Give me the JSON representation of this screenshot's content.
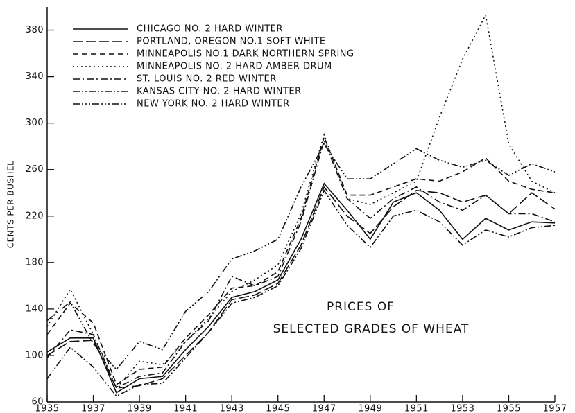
{
  "chart_data": {
    "type": "line",
    "annotation": [
      "PRICES OF",
      "SELECTED GRADES OF WHEAT"
    ],
    "y_label": "CENTS PER BUSHEL",
    "x": [
      1935,
      1936,
      1937,
      1938,
      1939,
      1940,
      1941,
      1942,
      1943,
      1944,
      1945,
      1946,
      1947,
      1948,
      1949,
      1950,
      1951,
      1952,
      1953,
      1954,
      1955,
      1956,
      1957
    ],
    "xlim": [
      1935,
      1957
    ],
    "xticks": [
      1935,
      1937,
      1939,
      1941,
      1943,
      1945,
      1947,
      1949,
      1951,
      1953,
      1955,
      1957
    ],
    "ylim": [
      60,
      400
    ],
    "yticks": [
      60,
      100,
      140,
      180,
      220,
      260,
      300,
      340,
      380
    ],
    "series": [
      {
        "name": "CHICAGO NO. 2 HARD WINTER",
        "color": "#111",
        "dash": "none",
        "values": [
          103,
          115,
          115,
          68,
          80,
          82,
          105,
          125,
          150,
          155,
          165,
          200,
          248,
          225,
          200,
          232,
          240,
          225,
          200,
          218,
          208,
          215,
          214
        ]
      },
      {
        "name": "PORTLAND, OREGON NO.1 SOFT WHITE",
        "color": "#111",
        "dash": "14 5",
        "values": [
          100,
          112,
          113,
          72,
          74,
          80,
          100,
          120,
          148,
          152,
          162,
          195,
          245,
          220,
          205,
          228,
          242,
          240,
          232,
          238,
          222,
          240,
          226
        ]
      },
      {
        "name": "MINNEAPOLIS NO.1 DARK NORTHERN SPRING",
        "color": "#111",
        "dash": "8 5",
        "values": [
          118,
          145,
          128,
          75,
          88,
          90,
          115,
          135,
          158,
          160,
          172,
          218,
          288,
          238,
          238,
          245,
          252,
          250,
          258,
          270,
          250,
          243,
          240
        ]
      },
      {
        "name": "MINNEAPOLIS NO. 2 HARD AMBER DRUM",
        "color": "#111",
        "dash": "2 4",
        "values": [
          125,
          157,
          118,
          72,
          95,
          92,
          112,
          132,
          155,
          165,
          178,
          222,
          290,
          235,
          230,
          240,
          250,
          305,
          355,
          393,
          282,
          250,
          240
        ]
      },
      {
        "name": "ST. LOUIS NO. 2 RED WINTER",
        "color": "#111",
        "dash": "10 4 2 4",
        "values": [
          98,
          122,
          118,
          72,
          82,
          85,
          112,
          130,
          168,
          160,
          168,
          215,
          285,
          235,
          218,
          235,
          245,
          232,
          225,
          238,
          222,
          222,
          215
        ]
      },
      {
        "name": "KANSAS CITY NO. 2 HARD WINTER",
        "color": "#111",
        "dash": "10 3 2 3 2 3",
        "values": [
          80,
          107,
          90,
          65,
          75,
          76,
          98,
          120,
          145,
          150,
          160,
          192,
          242,
          212,
          193,
          220,
          225,
          215,
          195,
          208,
          202,
          210,
          212
        ]
      },
      {
        "name": "NEW YORK NO. 2 HARD WINTER",
        "color": "#111",
        "dash": "10 3 2 3 2 3 2 3",
        "values": [
          130,
          146,
          110,
          88,
          112,
          105,
          138,
          155,
          183,
          190,
          200,
          245,
          282,
          252,
          252,
          265,
          278,
          268,
          262,
          268,
          255,
          265,
          258
        ]
      }
    ]
  }
}
